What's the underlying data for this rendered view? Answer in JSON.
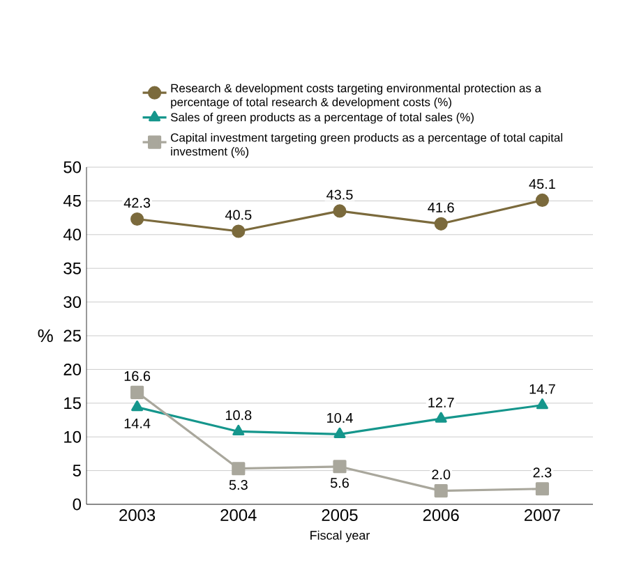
{
  "chart_data": {
    "type": "line",
    "categories": [
      "2003",
      "2004",
      "2005",
      "2006",
      "2007"
    ],
    "series": [
      {
        "name": "Research & development costs targeting environmental protection as a percentage of total research & development costs (%)",
        "color": "#7b6a3c",
        "marker": "circle",
        "values": [
          42.3,
          40.5,
          43.5,
          41.6,
          45.1
        ],
        "value_labels": [
          "42.3",
          "40.5",
          "43.5",
          "41.6",
          "45.1"
        ]
      },
      {
        "name": "Sales of green products as a percentage of total sales (%)",
        "color": "#15968c",
        "marker": "triangle",
        "values": [
          14.4,
          10.8,
          10.4,
          12.7,
          14.7
        ],
        "value_labels": [
          "14.4",
          "10.8",
          "10.4",
          "12.7",
          "14.7"
        ]
      },
      {
        "name": "Capital investment targeting green products as a percentage of total capital investment (%)",
        "color": "#a9a79c",
        "marker": "square",
        "values": [
          16.6,
          5.3,
          5.6,
          2.0,
          2.3
        ],
        "value_labels": [
          "16.6",
          "5.3",
          "5.6",
          "2.0",
          "2.3"
        ]
      }
    ],
    "xlabel": "Fiscal year",
    "ylabel": "%",
    "ylim": [
      0,
      50
    ],
    "yticks": [
      0,
      5,
      10,
      15,
      20,
      25,
      30,
      35,
      40,
      45,
      50
    ],
    "grid": "y",
    "legend": "top"
  }
}
